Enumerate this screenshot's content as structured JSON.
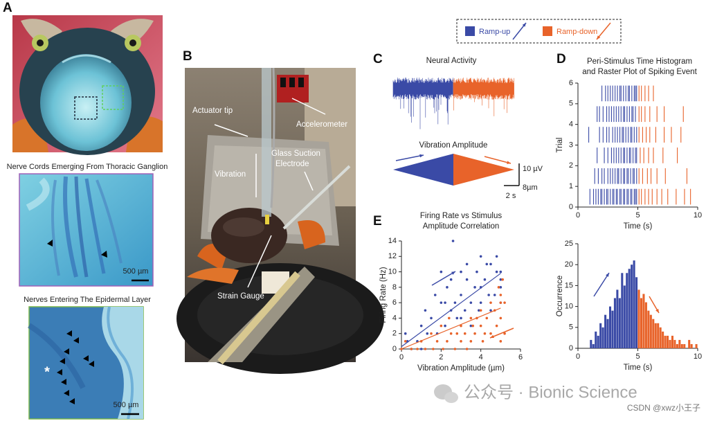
{
  "panel_labels": [
    "A",
    "B",
    "C",
    "D",
    "E"
  ],
  "panel_a": {
    "captions": [
      "Nerve Cords Emerging From Thoracic Ganglion",
      "Nerves Entering The Epidermal Layer"
    ],
    "scale_bars": [
      "500 µm",
      "500 µm"
    ],
    "marker": "*"
  },
  "panel_b": {
    "labels": [
      "Actuator tip",
      "Accelerometer",
      "Glass Suction",
      "Electrode",
      "Vibration",
      "Strain Gauge"
    ]
  },
  "legend": [
    {
      "name": "Ramp-up",
      "color": "#3a4aa6"
    },
    {
      "name": "Ramp-down",
      "color": "#e8632a"
    }
  ],
  "panel_c": {
    "titles": [
      "Neural Activity",
      "Vibration Amplitude"
    ],
    "scale_bars": [
      "10 µV",
      "8µm",
      "2 s"
    ]
  },
  "panel_d": {
    "title": [
      "Peri-Stimulus Time Histogram",
      "and Raster Plot of Spiking Event"
    ]
  },
  "chart_data": [
    {
      "type": "raster",
      "xlabel": "Time (s)",
      "ylabel": "Trial",
      "xlim": [
        0,
        10
      ],
      "ylim": [
        0,
        6
      ],
      "xticks": [
        0,
        5,
        10
      ],
      "yticks": [
        0,
        1,
        2,
        3,
        4,
        5,
        6
      ],
      "series": [
        {
          "color": "#3a4aa6",
          "trials": [
            [
              1.0,
              1.3,
              1.5,
              1.7,
              1.9,
              2.0,
              2.2,
              2.4,
              2.5,
              2.7,
              2.9,
              3.0,
              3.2,
              3.3,
              3.5,
              3.6,
              3.8,
              3.9,
              4.1,
              4.2,
              4.4,
              4.5,
              4.7,
              4.8,
              4.9
            ],
            [
              1.4,
              1.7,
              2.0,
              2.2,
              2.5,
              2.7,
              2.9,
              3.1,
              3.3,
              3.4,
              3.6,
              3.8,
              3.9,
              4.1,
              4.2,
              4.4,
              4.6,
              4.7,
              4.9
            ],
            [
              1.6,
              2.2,
              2.5,
              2.8,
              3.0,
              3.2,
              3.4,
              3.6,
              3.8,
              3.9,
              4.1,
              4.3,
              4.4,
              4.6,
              4.8,
              4.9
            ],
            [
              0.9,
              1.8,
              2.1,
              2.4,
              2.6,
              2.9,
              3.1,
              3.3,
              3.5,
              3.7,
              3.8,
              4.0,
              4.2,
              4.4,
              4.5,
              4.7,
              4.9
            ],
            [
              1.6,
              1.8,
              2.1,
              2.4,
              2.6,
              2.8,
              3.0,
              3.2,
              3.4,
              3.6,
              3.8,
              3.9,
              4.1,
              4.3,
              4.5,
              4.6,
              4.8
            ],
            [
              2.0,
              2.3,
              2.5,
              2.7,
              2.9,
              3.1,
              3.3,
              3.5,
              3.6,
              3.8,
              4.0,
              4.2,
              4.3,
              4.5,
              4.7,
              4.8,
              4.9
            ]
          ]
        },
        {
          "color": "#e8632a",
          "trials": [
            [
              5.1,
              5.3,
              5.6,
              5.9,
              6.2,
              6.6,
              7.0,
              7.5,
              8.2,
              8.9,
              9.4
            ],
            [
              5.1,
              5.4,
              5.8,
              6.1,
              6.6,
              7.3,
              9.1
            ],
            [
              5.2,
              5.5,
              5.9,
              6.3,
              7.1,
              8.3
            ],
            [
              5.1,
              5.4,
              5.7,
              6.0,
              6.5,
              7.2,
              7.8,
              8.6
            ],
            [
              5.1,
              5.3,
              5.6,
              6.0,
              6.6,
              7.2,
              8.8
            ],
            [
              5.1,
              5.3,
              5.6,
              5.9,
              6.3
            ]
          ]
        }
      ]
    },
    {
      "type": "histogram",
      "xlabel": "Time (s)",
      "ylabel": "Occurrence",
      "xlim": [
        0,
        10
      ],
      "ylim": [
        0,
        25
      ],
      "xticks": [
        0,
        5,
        10
      ],
      "yticks": [
        0,
        5,
        10,
        15,
        20,
        25
      ],
      "series": [
        {
          "color": "#3a4aa6",
          "bins": [
            1.0,
            1.2,
            1.4,
            1.6,
            1.8,
            2.0,
            2.2,
            2.4,
            2.6,
            2.8,
            3.0,
            3.2,
            3.4,
            3.6,
            3.8,
            4.0,
            4.2,
            4.4,
            4.6,
            4.8,
            5.0
          ],
          "counts": [
            2,
            1,
            4,
            3,
            6,
            5,
            8,
            7,
            10,
            9,
            12,
            14,
            12,
            18,
            15,
            18,
            19,
            20,
            21,
            17
          ]
        },
        {
          "color": "#e8632a",
          "bins": [
            5.0,
            5.2,
            5.4,
            5.6,
            5.8,
            6.0,
            6.2,
            6.4,
            6.6,
            6.8,
            7.0,
            7.2,
            7.4,
            7.6,
            7.8,
            8.0,
            8.2,
            8.4,
            8.6,
            8.8,
            9.0,
            9.2,
            9.4,
            9.6,
            9.8,
            10.0
          ],
          "counts": [
            14,
            12,
            13,
            11,
            9,
            8,
            7,
            6,
            6,
            5,
            4,
            3,
            3,
            2,
            3,
            2,
            1,
            2,
            1,
            1,
            0,
            2,
            1,
            0,
            1
          ]
        }
      ]
    },
    {
      "type": "scatter",
      "title": [
        "Firing Rate vs Stimulus",
        "Amplitude Correlation"
      ],
      "xlabel": "Vibration Amplitude (µm)",
      "ylabel": "Firing Rate (Hz)",
      "xlim": [
        0,
        6
      ],
      "ylim": [
        0,
        14
      ],
      "xticks": [
        0,
        2,
        4,
        6
      ],
      "yticks": [
        0,
        2,
        4,
        6,
        8,
        10,
        12,
        14
      ],
      "series": [
        {
          "color": "#3a4aa6",
          "x": [
            0.2,
            0.3,
            0.5,
            0.8,
            1,
            1.2,
            1.3,
            1.5,
            1.8,
            2,
            2,
            2.2,
            2.3,
            2.5,
            2.5,
            2.6,
            2.8,
            3,
            3,
            3,
            3.2,
            3.3,
            3.5,
            3.5,
            3.7,
            3.8,
            4,
            4,
            4,
            4.2,
            4.3,
            4.5,
            4.5,
            4.7,
            4.8,
            4.8,
            5,
            5,
            5,
            5,
            1,
            2.7,
            3.3,
            4.4,
            1.7,
            2.2,
            3.9
          ],
          "y": [
            2,
            1,
            0,
            1,
            3,
            5,
            2,
            4,
            2,
            10,
            6,
            3,
            8,
            5,
            9,
            14,
            4,
            10,
            7,
            4,
            5,
            11,
            6,
            3,
            8,
            10,
            12,
            6,
            8,
            9,
            11,
            5,
            11,
            7,
            12,
            10,
            10,
            6,
            9,
            8,
            0,
            6,
            9,
            7,
            7,
            6,
            5
          ],
          "trend": {
            "x": [
              0,
              5
            ],
            "y": [
              0.3,
              9.8
            ]
          }
        },
        {
          "color": "#e8632a",
          "x": [
            0,
            0.2,
            0.5,
            0.8,
            1,
            1.2,
            1.5,
            1.6,
            1.8,
            2,
            2.1,
            2.3,
            2.5,
            2.7,
            2.8,
            3,
            3,
            3.2,
            3.3,
            3.5,
            3.5,
            3.7,
            3.8,
            4,
            4,
            4.1,
            4.3,
            4.5,
            4.5,
            4.7,
            4.8,
            5,
            5,
            5,
            5,
            5.1,
            5.2,
            5.2,
            4.9,
            4.2,
            2.4,
            3.6
          ],
          "y": [
            0,
            1,
            0,
            0,
            1,
            0,
            2,
            0,
            1,
            3,
            0,
            1,
            2,
            0,
            2,
            1,
            3,
            2,
            0,
            4,
            1,
            2,
            4,
            3,
            5,
            1,
            4,
            2,
            6,
            5,
            3,
            7,
            4,
            1,
            6,
            9,
            2,
            6,
            8,
            2,
            4,
            3
          ],
          "trend": {
            "x": [
              0,
              5
            ],
            "y": [
              0,
              5.3
            ]
          }
        }
      ]
    }
  ],
  "watermark": [
    "公众号 · Bionic Science",
    "CSDN @xwz小王子"
  ]
}
